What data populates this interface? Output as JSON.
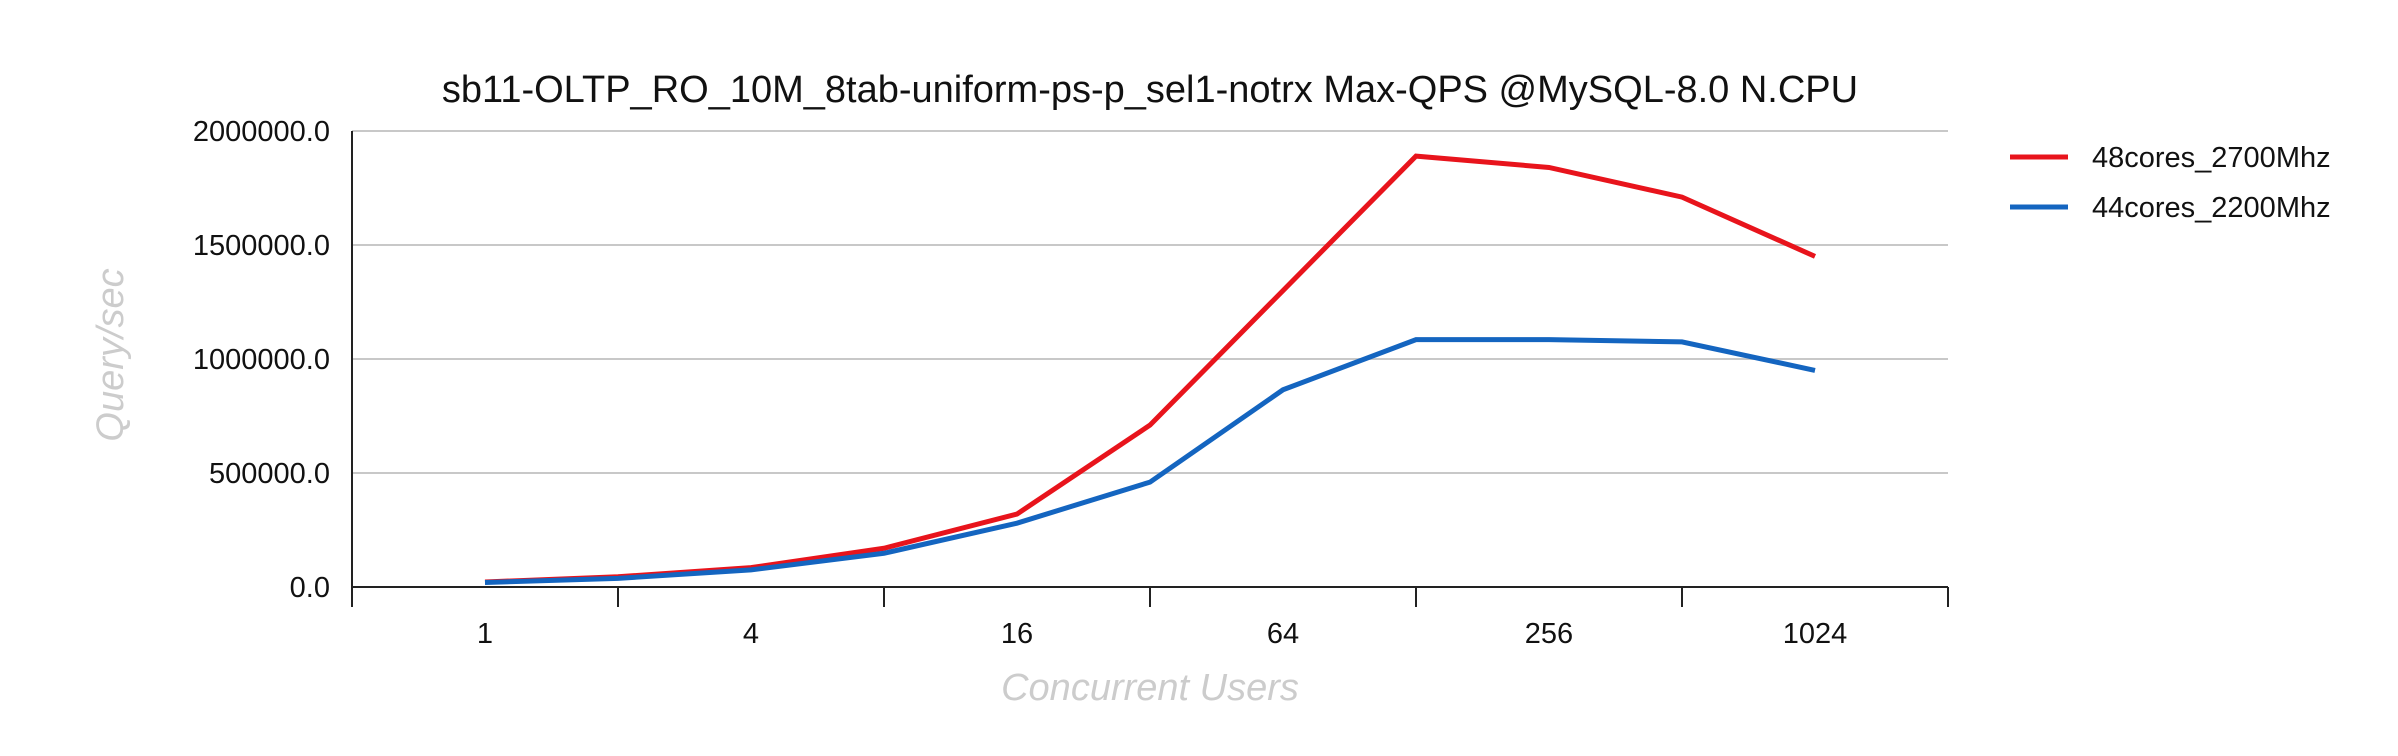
{
  "chart_data": {
    "type": "line",
    "title": "sb11-OLTP_RO_10M_8tab-uniform-ps-p_sel1-notrx Max-QPS @MySQL-8.0 N.CPU",
    "xlabel": "Concurrent Users",
    "ylabel": "Query/sec",
    "x_scale": "log2",
    "x": [
      1,
      2,
      4,
      8,
      16,
      32,
      64,
      128,
      256,
      512,
      1024
    ],
    "x_ticks": [
      "1",
      "4",
      "16",
      "64",
      "256",
      "1024"
    ],
    "xlim": [
      0.5,
      2048
    ],
    "ylim": [
      0,
      2000000
    ],
    "y_ticks": [
      "0.0",
      "500000.0",
      "1000000.0",
      "1500000.0",
      "2000000.0"
    ],
    "grid": true,
    "legend_position": "top-right outside",
    "series": [
      {
        "name": "48cores_2700Mhz",
        "color": "#e8141c",
        "values": [
          22000,
          45000,
          85000,
          170000,
          320000,
          710000,
          1300000,
          1890000,
          1840000,
          1710000,
          1450000
        ]
      },
      {
        "name": "44cores_2200Mhz",
        "color": "#1465c0",
        "values": [
          20000,
          38000,
          75000,
          148000,
          280000,
          460000,
          865000,
          1085000,
          1085000,
          1075000,
          950000
        ]
      }
    ]
  }
}
